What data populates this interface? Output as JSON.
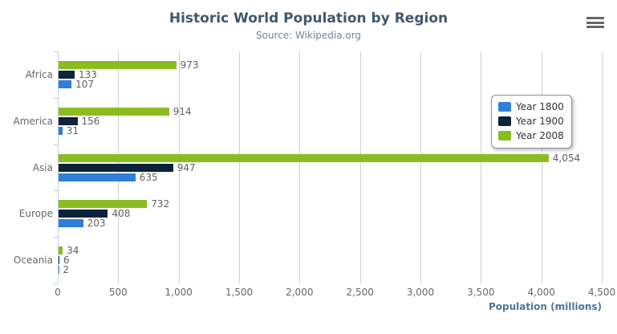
{
  "chart_data": {
    "type": "bar",
    "orientation": "horizontal",
    "title": "Historic World Population by Region",
    "subtitle": "Source: Wikipedia.org",
    "categories": [
      "Africa",
      "America",
      "Asia",
      "Europe",
      "Oceania"
    ],
    "series": [
      {
        "name": "Year 1800",
        "color": "#2f7ed8",
        "values": [
          107,
          31,
          635,
          203,
          2
        ]
      },
      {
        "name": "Year 1900",
        "color": "#0d233a",
        "values": [
          133,
          156,
          947,
          408,
          6
        ]
      },
      {
        "name": "Year 2008",
        "color": "#8bbc21",
        "values": [
          973,
          914,
          4054,
          732,
          34
        ]
      }
    ],
    "series_display_order_top_to_bottom": [
      "Year 2008",
      "Year 1900",
      "Year 1800"
    ],
    "xlabel": "Population (millions)",
    "ylabel": "",
    "xlim": [
      0,
      4500
    ],
    "x_tick_values": [
      0,
      500,
      1000,
      1500,
      2000,
      2500,
      3000,
      3500,
      4000,
      4500
    ],
    "x_tick_labels": [
      "0",
      "500",
      "1,000",
      "1,500",
      "2,000",
      "2,500",
      "3,000",
      "3,500",
      "4,000",
      "4,500"
    ],
    "grid": true,
    "data_labels": true,
    "legend_position": "right-overlay"
  },
  "icons": {
    "menu": "hamburger-icon"
  },
  "colors": {
    "background": "#ffffff",
    "title": "#3e576f",
    "subtitle": "#6d869f",
    "axis_title": "#4d759e",
    "axis_labels": "#666666",
    "data_labels": "#606060",
    "gridline": "#d0d0d0",
    "axis_line": "#c0d0e0",
    "legend_border": "#909090",
    "legend_text": "#333333",
    "menu_icon": "#666666"
  }
}
